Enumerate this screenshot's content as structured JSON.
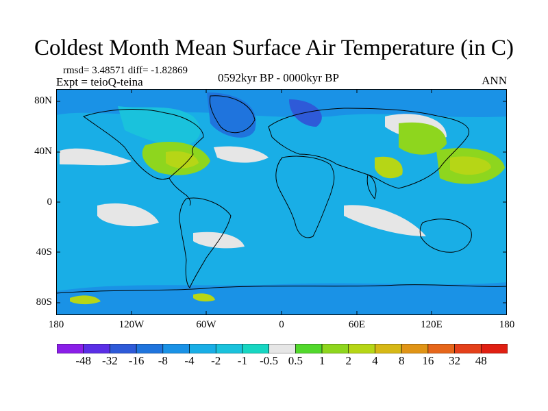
{
  "title": "Coldest Month Mean Surface Air Temperature (in C)",
  "stats": "rmsd= 3.48571 diff= -1.82869",
  "experiment": "Expt = teioQ-teina",
  "period": "0592kyr BP - 0000kyr BP",
  "season": "ANN",
  "lat_labels": [
    "80N",
    "40N",
    "0",
    "40S",
    "80S"
  ],
  "lon_labels": [
    "180",
    "120W",
    "60W",
    "0",
    "60E",
    "120E",
    "180"
  ],
  "colorbar": {
    "labels": [
      "-48",
      "-32",
      "-16",
      "-8",
      "-4",
      "-2",
      "-1",
      "-0.5",
      "0.5",
      "1",
      "2",
      "4",
      "8",
      "16",
      "32",
      "48"
    ],
    "colors": [
      "#8a1ee8",
      "#5a2ee6",
      "#2e5ad8",
      "#1f74dd",
      "#1a92e6",
      "#19aee6",
      "#1ac2dc",
      "#17d6c2",
      "#e6e6e6",
      "#52d82c",
      "#8ed61e",
      "#b6d616",
      "#d6b816",
      "#e09416",
      "#e6661a",
      "#e4401a",
      "#e01f12"
    ]
  }
}
